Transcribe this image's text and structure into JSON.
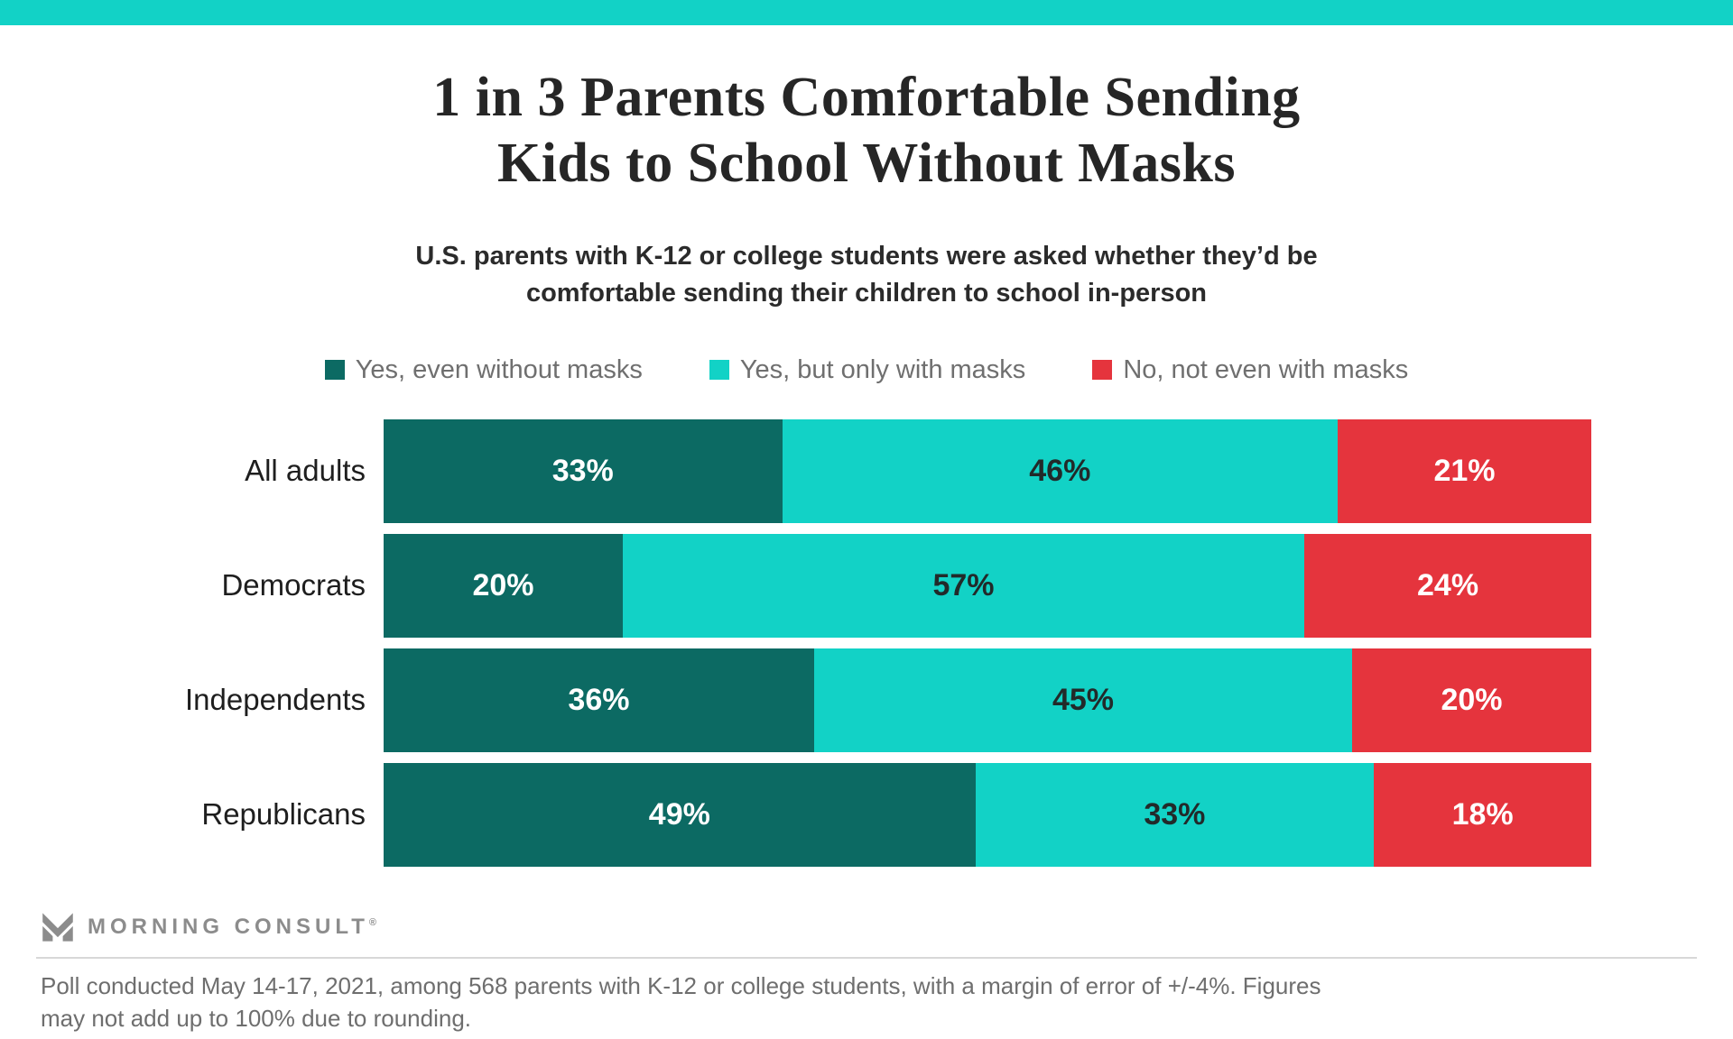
{
  "accent_color": "#12D2C6",
  "title": {
    "line1": "1 in 3 Parents Comfortable Sending",
    "line2": "Kids to School Without Masks"
  },
  "subtitle": "U.S. parents with K-12 or college students were asked whether they’d be comfortable sending their children to school in-person",
  "chart_data": {
    "type": "bar",
    "orientation": "horizontal",
    "stacked": true,
    "categories": [
      "All adults",
      "Democrats",
      "Independents",
      "Republicans"
    ],
    "series": [
      {
        "name": "Yes, even without masks",
        "color": "#0C6A63",
        "label_color": "#FFFFFF",
        "values": [
          33,
          20,
          36,
          49
        ]
      },
      {
        "name": "Yes, but only with masks",
        "color": "#12D2C6",
        "label_color": "#222A2A",
        "values": [
          46,
          57,
          45,
          33
        ]
      },
      {
        "name": "No, not even with masks",
        "color": "#E5343D",
        "label_color": "#FFFFFF",
        "values": [
          21,
          24,
          20,
          18
        ]
      }
    ],
    "value_suffix": "%",
    "xlim": [
      0,
      100
    ],
    "legend_position": "top",
    "grid": false
  },
  "legend_text_color": "#6F6F6F",
  "footer": {
    "logo_text": "MORNING CONSULT",
    "reg_mark": "®",
    "note": "Poll conducted May 14-17, 2021, among 568 parents with K-12 or college students, with a margin of error of +/-4%. Figures may not add up to 100% due to rounding."
  }
}
